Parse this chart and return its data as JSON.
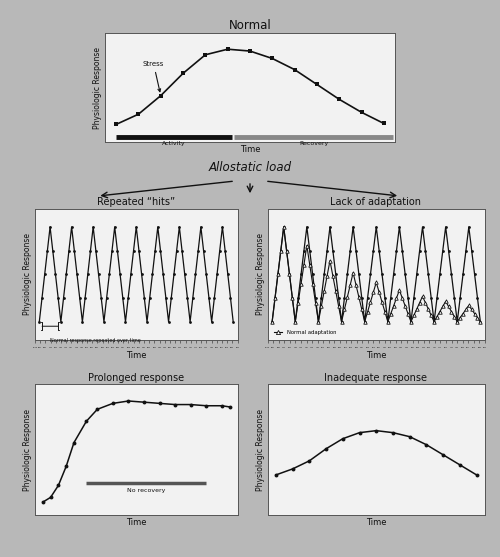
{
  "fig_bg": "#b8b8b8",
  "panel_bg": "#f2f2f2",
  "title_normal": "Normal",
  "title_allostatic": "Allostatic load",
  "title_repeated": "Repeated “hits”",
  "title_lack": "Lack of adaptation",
  "title_prolonged": "Prolonged response",
  "title_inadequate": "Inadequate response",
  "ylabel": "Physiologic Response",
  "xlabel": "Time",
  "line_color": "#111111",
  "dot_color": "#111111",
  "text_color": "#111111",
  "activity_color": "#111111",
  "recovery_color": "#888888",
  "no_recovery_color": "#555555"
}
